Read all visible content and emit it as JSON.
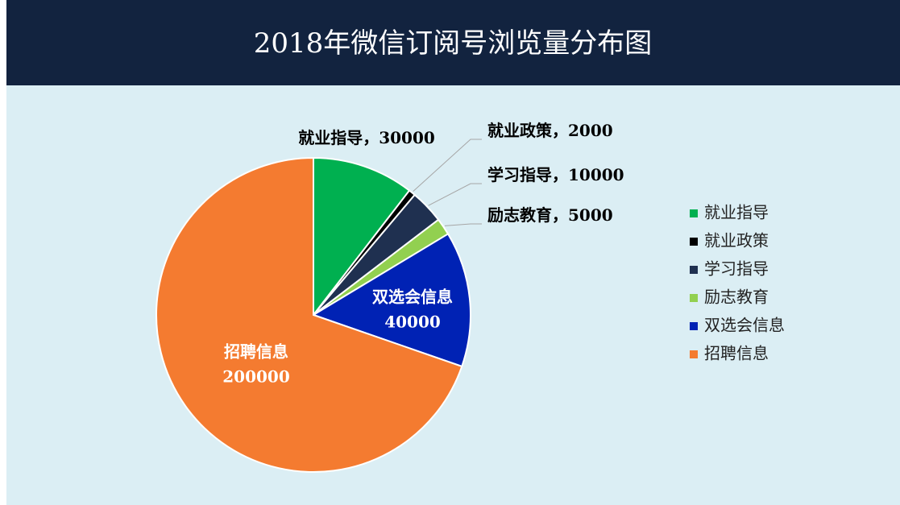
{
  "chart_data": {
    "type": "pie",
    "title": "2018年微信订阅号浏览量分布图",
    "categories": [
      "就业指导",
      "就业政策",
      "学习指导",
      "励志教育",
      "双选会信息",
      "招聘信息"
    ],
    "values": [
      30000,
      2000,
      10000,
      5000,
      40000,
      200000
    ],
    "colors": [
      "#00b050",
      "#000000",
      "#1f3050",
      "#92d050",
      "#0022b4",
      "#f47b30"
    ],
    "label_separator": "，",
    "legend": "right"
  }
}
